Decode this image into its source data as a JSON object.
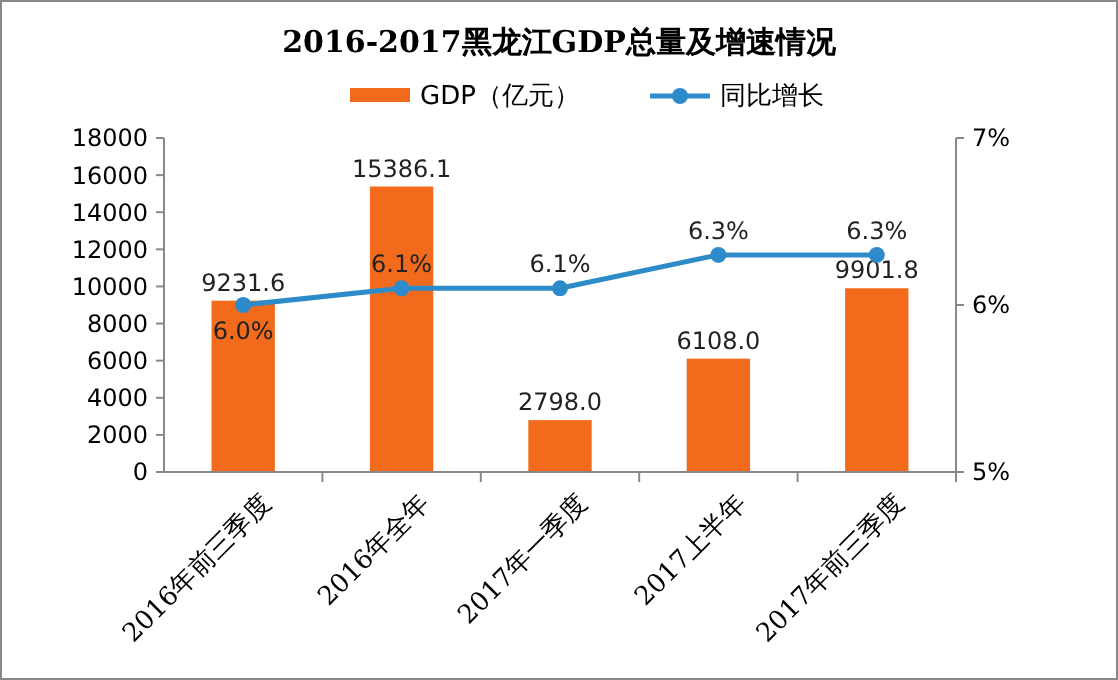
{
  "chart_data": {
    "type": "bar",
    "title": "2016-2017黑龙江GDP总量及增速情况",
    "categories": [
      "2016年前三季度",
      "2016年全年",
      "2017年一季度",
      "2017上半年",
      "2017年前三季度"
    ],
    "series": [
      {
        "name": "GDP（亿元）",
        "color": "#f26b1d",
        "values": [
          9231.6,
          15386.1,
          2798.0,
          6108.0,
          9901.8
        ],
        "value_labels": [
          "9231.6",
          "15386.1",
          "2798.0",
          "6108.0",
          "9901.8"
        ]
      },
      {
        "name": "同比增长",
        "type": "line",
        "axis": "y2",
        "color": "#2e8bc9",
        "marker": "circle",
        "values": [
          6.0,
          6.1,
          6.1,
          6.3,
          6.3
        ],
        "value_labels": [
          "6.0%",
          "6.1%",
          "6.1%",
          "6.3%",
          "6.3%"
        ]
      }
    ],
    "ylim": [
      0,
      18000
    ],
    "yticks": [
      0,
      2000,
      4000,
      6000,
      8000,
      10000,
      12000,
      14000,
      16000,
      18000
    ],
    "y2lim": [
      5,
      7
    ],
    "y2ticks": [
      {
        "value": 5,
        "label": "5%"
      },
      {
        "value": 6,
        "label": "6%"
      },
      {
        "value": 7,
        "label": "7%"
      }
    ],
    "legend": "top",
    "grid": false
  }
}
